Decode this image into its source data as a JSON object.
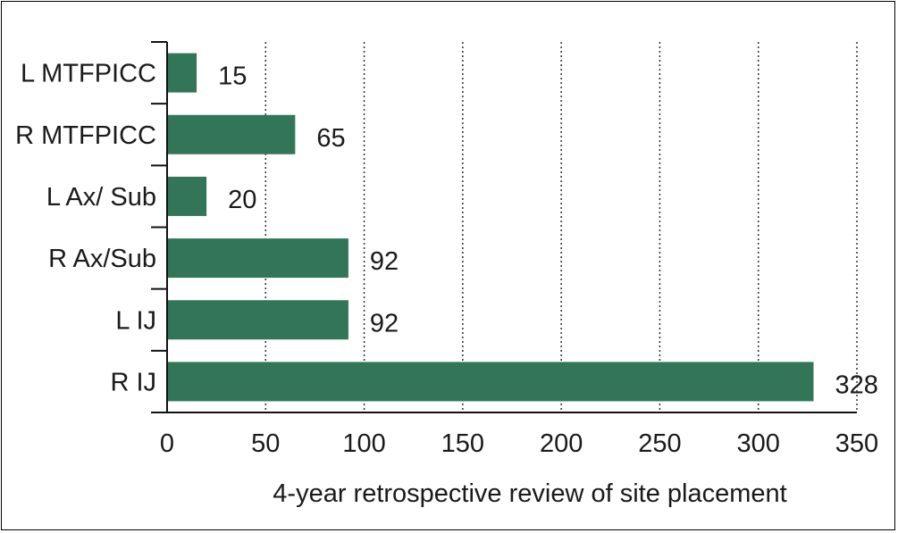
{
  "chart_data": {
    "type": "bar",
    "orientation": "horizontal",
    "categories": [
      "L MTFPICC",
      "R MTFPICC",
      "L Ax/ Sub",
      "R Ax/Sub",
      "L IJ",
      "R IJ"
    ],
    "values": [
      15,
      65,
      20,
      92,
      92,
      328
    ],
    "data_labels": [
      "15",
      "65",
      "20",
      "92",
      "92",
      "328"
    ],
    "title": "",
    "xlabel": "4-year retrospective review of site placement",
    "ylabel": "",
    "xlim": [
      0,
      350
    ],
    "xticks": [
      0,
      50,
      100,
      150,
      200,
      250,
      300,
      350
    ],
    "xtick_labels": [
      "0",
      "50",
      "100",
      "150",
      "200",
      "250",
      "300",
      "350"
    ],
    "grid": "vertical-dotted",
    "legend": "none",
    "bar_color": "#337559"
  }
}
